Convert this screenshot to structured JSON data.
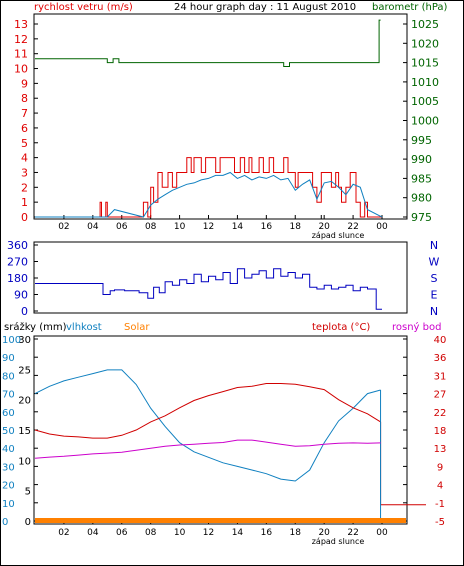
{
  "colors": {
    "wind": "#e00000",
    "wind_avg": "#1080c0",
    "pressure": "#006400",
    "direction": "#0000c0",
    "rain": "#6a0dad",
    "humidity": "#1080c0",
    "solar": "#ff8000",
    "temperature": "#d00000",
    "dew_point": "#cc00cc",
    "text": "#000000"
  },
  "header": {
    "left_label": "rychlost vetru (m/s)",
    "title": "24 hour graph day : 11 August 2010",
    "right_label": "barometr (hPa)"
  },
  "direction_labels": [
    "N",
    "W",
    "S",
    "E",
    "N"
  ],
  "panel3_labels": {
    "rain": "srážky (mm)",
    "humidity": "vlhkost",
    "solar": "Solar",
    "temperature": "teplota (°C)",
    "dew_point": "rosný bod"
  },
  "sunset_label": "západ slunce",
  "chart_data": [
    {
      "type": "line",
      "series": [
        {
          "name": "rychlost vetru (m/s)",
          "axis": "left",
          "x": [
            0,
            4.4,
            4.5,
            4.6,
            4.8,
            4.9,
            5.0,
            5.2,
            5.4,
            5.6,
            6.2,
            7.0,
            7.5,
            7.8,
            8.0,
            8.2,
            8.5,
            8.8,
            9.0,
            9.2,
            9.5,
            9.8,
            10.0,
            10.2,
            10.5,
            10.8,
            11.0,
            11.2,
            11.5,
            11.8,
            12.0,
            12.2,
            12.5,
            12.8,
            13.0,
            13.2,
            13.5,
            13.8,
            14.0,
            14.2,
            14.5,
            14.8,
            15.0,
            15.2,
            15.5,
            15.8,
            16.0,
            16.2,
            16.5,
            16.8,
            17.0,
            17.2,
            17.5,
            17.8,
            18.0,
            18.2,
            18.5,
            18.8,
            19.0,
            19.2,
            19.5,
            19.8,
            20.0,
            20.2,
            20.5,
            20.8,
            21.0,
            21.2,
            21.5,
            21.8,
            22.0,
            22.2,
            22.5,
            22.8,
            23.0,
            23.2,
            23.5,
            24
          ],
          "y": [
            0,
            0,
            1,
            0,
            0,
            1,
            0,
            0,
            0,
            0,
            0,
            0,
            1,
            0,
            2,
            1,
            3,
            2,
            2,
            3,
            2,
            3,
            3,
            3,
            4,
            3,
            4,
            4,
            3,
            4,
            4,
            4,
            3,
            4,
            4,
            4,
            4,
            3,
            3,
            4,
            3,
            4,
            3,
            3,
            4,
            3,
            3,
            4,
            3,
            3,
            3,
            4,
            3,
            3,
            2,
            3,
            3,
            3,
            3,
            2,
            1,
            3,
            3,
            3,
            2,
            3,
            2,
            1,
            2,
            3,
            3,
            1,
            0,
            1,
            0,
            0,
            0,
            0
          ]
        },
        {
          "name": "prumer",
          "axis": "left",
          "x": [
            0,
            5.0,
            5.5,
            7.5,
            8.0,
            8.5,
            9.0,
            9.5,
            10.0,
            10.5,
            11.0,
            11.5,
            12.0,
            12.5,
            13.0,
            13.5,
            14.0,
            14.5,
            15.0,
            15.5,
            16.0,
            16.5,
            17.0,
            17.5,
            18.0,
            18.5,
            19.0,
            19.5,
            20.0,
            20.5,
            21.0,
            21.5,
            22.0,
            22.5,
            23.0,
            24
          ],
          "y": [
            0,
            0,
            0.5,
            0,
            0.8,
            1.2,
            1.5,
            1.8,
            2.0,
            2.2,
            2.3,
            2.5,
            2.6,
            2.8,
            2.8,
            3.0,
            2.6,
            2.8,
            2.5,
            2.7,
            2.6,
            2.8,
            2.5,
            2.6,
            1.8,
            2.2,
            2.5,
            1.2,
            2.3,
            2.4,
            2.0,
            1.5,
            2.2,
            2.0,
            0.5,
            0
          ]
        },
        {
          "name": "barometr (hPa)",
          "axis": "right",
          "x": [
            0,
            5.0,
            5.0,
            5.4,
            5.4,
            5.8,
            5.8,
            10.0,
            10.0,
            10.2,
            10.2,
            13.0,
            13.0,
            13.5,
            13.5,
            17.2,
            17.2,
            17.6,
            17.6,
            20.0,
            20.0,
            23.8,
            23.8,
            23.9
          ],
          "y": [
            1016,
            1016,
            1015,
            1015,
            1016,
            1016,
            1015,
            1015,
            1015,
            1015,
            1015,
            1015,
            1015,
            1015,
            1015,
            1015,
            1014,
            1014,
            1015,
            1015,
            1015,
            1015,
            1026,
            1026
          ]
        }
      ],
      "x_ticks": [
        "02",
        "04",
        "06",
        "08",
        "10",
        "12",
        "14",
        "16",
        "18",
        "20",
        "22",
        "00"
      ],
      "ylim_left": [
        0,
        13
      ],
      "ylim_right": [
        975,
        1025
      ],
      "left_ticks": [
        0,
        1,
        2,
        3,
        4,
        5,
        6,
        7,
        8,
        9,
        10,
        11,
        12,
        13
      ],
      "right_ticks": [
        975,
        980,
        985,
        990,
        995,
        1000,
        1005,
        1010,
        1015,
        1020,
        1025
      ]
    },
    {
      "type": "line",
      "series": [
        {
          "name": "smer vetru",
          "x": [
            0,
            4.7,
            4.7,
            5.2,
            5.5,
            6.2,
            7.2,
            7.8,
            8.2,
            8.6,
            9.0,
            9.5,
            10.0,
            10.5,
            11.0,
            11.5,
            12.0,
            12.5,
            13.0,
            13.5,
            14.0,
            14.5,
            15.0,
            15.5,
            16.0,
            16.5,
            17.0,
            17.5,
            18.0,
            18.5,
            19.0,
            19.5,
            20.0,
            20.5,
            21.0,
            21.5,
            22.0,
            22.5,
            23.0,
            23.5,
            23.6,
            24
          ],
          "y": [
            150,
            150,
            90,
            110,
            115,
            110,
            100,
            70,
            130,
            100,
            160,
            140,
            170,
            150,
            200,
            160,
            190,
            170,
            210,
            150,
            230,
            180,
            200,
            220,
            180,
            230,
            190,
            210,
            180,
            200,
            130,
            120,
            140,
            120,
            130,
            140,
            110,
            130,
            120,
            120,
            10,
            10
          ]
        }
      ],
      "x_ticks": [],
      "ylim": [
        0,
        360
      ],
      "ticks": [
        0,
        90,
        180,
        270,
        360
      ]
    },
    {
      "type": "line",
      "series": [
        {
          "name": "vlhkost",
          "axis": "humidity",
          "x": [
            0,
            1,
            2,
            3,
            4,
            5,
            6,
            7,
            8,
            9,
            10,
            11,
            12,
            13,
            14,
            15,
            16,
            17,
            18,
            19,
            20,
            21,
            22,
            23,
            23.9
          ],
          "y": [
            70,
            74,
            77,
            79,
            81,
            83,
            83,
            75,
            62,
            52,
            43,
            38,
            35,
            32,
            30,
            28,
            26,
            23,
            22,
            28,
            43,
            55,
            62,
            70,
            72
          ]
        },
        {
          "name": "teplota (°C)",
          "axis": "temp",
          "x": [
            0,
            1,
            2,
            3,
            4,
            5,
            6,
            7,
            8,
            9,
            10,
            11,
            12,
            13,
            14,
            15,
            16,
            17,
            18,
            19,
            20,
            21,
            22,
            23,
            23.9,
            24
          ],
          "y": [
            17.5,
            16.5,
            16,
            15.8,
            15.5,
            15.5,
            16.2,
            17.5,
            19.5,
            21,
            23,
            24.8,
            26,
            27,
            28,
            28.3,
            29,
            29,
            28.8,
            28.2,
            27.5,
            25,
            23,
            21.5,
            19.5,
            -1
          ]
        },
        {
          "name": "rosný bod",
          "axis": "temp",
          "x": [
            0,
            1,
            2,
            3,
            4,
            5,
            6,
            7,
            8,
            9,
            10,
            11,
            12,
            13,
            14,
            15,
            16,
            17,
            18,
            19,
            20,
            21,
            22,
            23,
            23.9
          ],
          "y": [
            10.5,
            10.8,
            11,
            11.3,
            11.6,
            11.8,
            12,
            12.5,
            13,
            13.5,
            13.8,
            14,
            14.2,
            14.4,
            15,
            15,
            14.5,
            14,
            13.5,
            13.6,
            14,
            14.2,
            14.3,
            14.2,
            14.3
          ]
        },
        {
          "name": "srážky (mm)",
          "axis": "rain",
          "x": [
            0,
            24
          ],
          "y": [
            0,
            0
          ]
        },
        {
          "name": "Solar",
          "axis": "solar",
          "x": [
            0,
            24
          ],
          "y": [
            0,
            0
          ]
        }
      ],
      "x_ticks": [
        "02",
        "04",
        "06",
        "08",
        "10",
        "12",
        "14",
        "16",
        "18",
        "20",
        "22",
        "00"
      ],
      "rain_ticks": [
        "0",
        "5",
        "10",
        "15",
        "20",
        "25",
        "30"
      ],
      "humidity_ticks": [
        "0",
        "10",
        "20",
        "30",
        "40",
        "50",
        "60",
        "70",
        "80",
        "90",
        "100"
      ],
      "temp_ticks": [
        "-5",
        "-1",
        "4",
        "9",
        "13",
        "18",
        "22",
        "27",
        "31",
        "36",
        "40"
      ]
    }
  ]
}
